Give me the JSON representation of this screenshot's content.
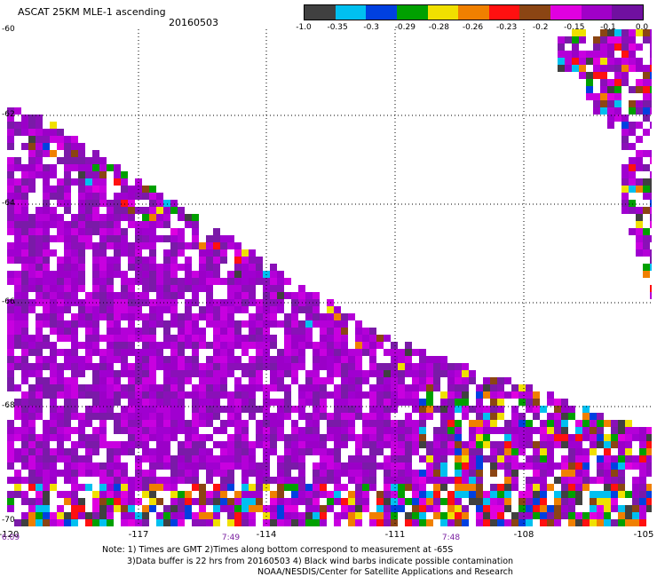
{
  "header": {
    "title": "ASCAT 25KM MLE-1 ascending",
    "date": "20160503"
  },
  "colorbar": {
    "colors": [
      "#404040",
      "#00c0f0",
      "#0040e0",
      "#00a000",
      "#f0e000",
      "#f08000",
      "#ff1010",
      "#8b4513",
      "#e000e0",
      "#a000c8",
      "#7010a0"
    ],
    "labels": [
      "-1.0",
      "-0.35",
      "-0.3",
      "-0.29",
      "-0.28",
      "-0.26",
      "-0.23",
      "-0.2",
      "-0.15",
      "-0.1",
      "0.0"
    ]
  },
  "map": {
    "lat_labels": [
      "-60",
      "-62",
      "-64",
      "-66",
      "-68",
      "-70"
    ],
    "lon_labels": [
      "-120",
      "-117",
      "-114",
      "-111",
      "-108",
      "-105"
    ],
    "time_labels": [
      "6:09",
      "7:49",
      "7:48"
    ]
  },
  "notes": {
    "line1": "Note: 1) Times are GMT 2)Times along bottom correspond to measurement at -65S",
    "line2": "3)Data buffer is 22 hrs from 20160503 4) Black wind barbs indicate possible contamination",
    "line3": "NOAA/NESDIS/Center for Satellite Applications and Research"
  }
}
